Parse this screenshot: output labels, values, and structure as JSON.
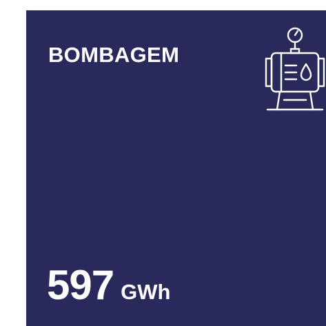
{
  "title": "BOMBAGEM",
  "value": 597,
  "unit": "GWh"
}
